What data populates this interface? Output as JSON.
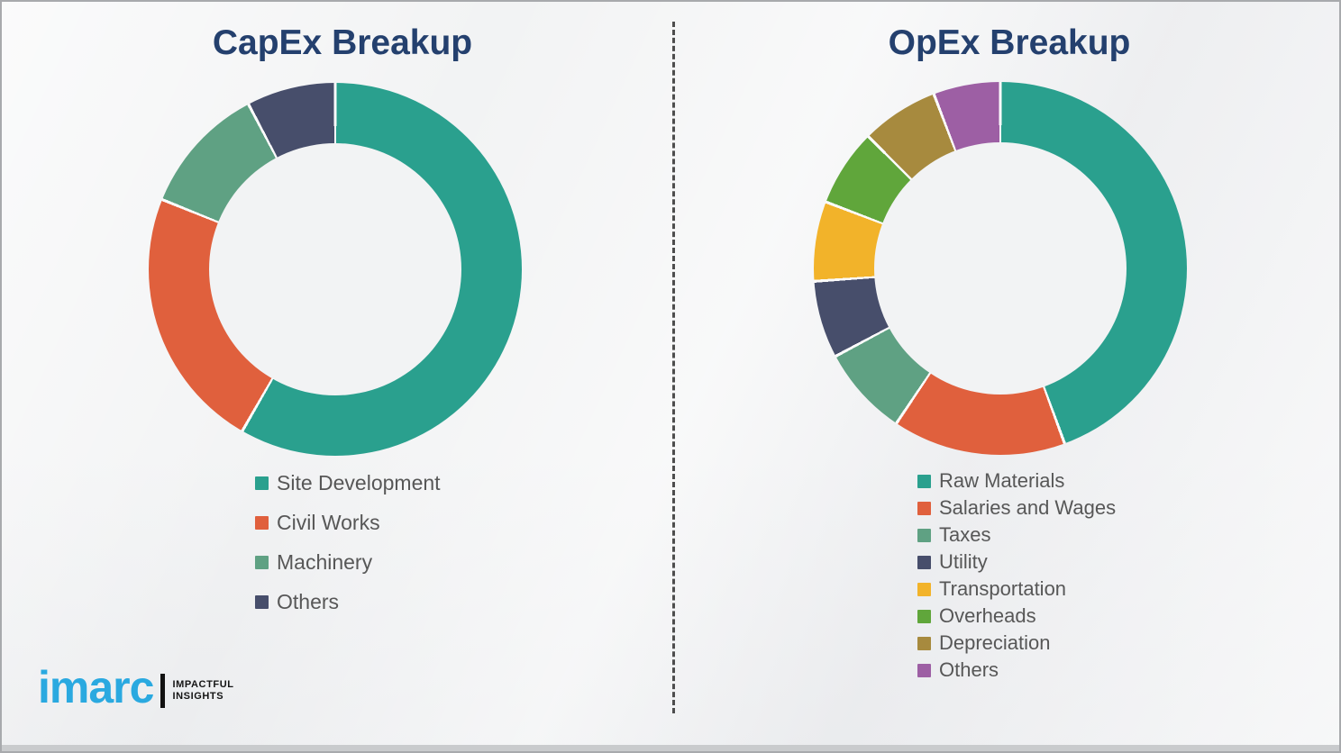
{
  "page": {
    "background": "#f2f3f4",
    "divider_color": "#4d4d4d",
    "title_color": "#24406e",
    "legend_text_color": "#575757"
  },
  "capex": {
    "title": "CapEx Breakup"
  },
  "opex": {
    "title": "OpEx Breakup"
  },
  "logo": {
    "brand": "imarc",
    "tagline_line1": "IMPACTFUL",
    "tagline_line2": "INSIGHTS",
    "brand_color": "#2aa9e0"
  },
  "chart_data": [
    {
      "type": "pie",
      "variant": "donut",
      "title": "CapEx Breakup",
      "units": "% (estimated from arc angles, no labels shown)",
      "start_angle_deg": 0,
      "direction": "clockwise",
      "legend_position": "bottom-left",
      "categories": [
        "Site Development",
        "Civil Works",
        "Machinery",
        "Others"
      ],
      "values": [
        58.3,
        22.8,
        11.2,
        7.7
      ],
      "colors": [
        "#2aa08e",
        "#e0603d",
        "#5fa183",
        "#474e6b"
      ]
    },
    {
      "type": "pie",
      "variant": "donut",
      "title": "OpEx Breakup",
      "units": "% (estimated from arc angles, no labels shown)",
      "start_angle_deg": 0,
      "direction": "clockwise",
      "legend_position": "bottom-left",
      "categories": [
        "Raw Materials",
        "Salaries and Wages",
        "Taxes",
        "Utility",
        "Transportation",
        "Overheads",
        "Depreciation",
        "Others"
      ],
      "values": [
        44.4,
        15.0,
        7.8,
        6.7,
        6.9,
        6.7,
        6.7,
        5.8
      ],
      "colors": [
        "#2aa08e",
        "#e0603d",
        "#5fa183",
        "#474e6b",
        "#f2b32a",
        "#60a63b",
        "#a78a3e",
        "#9d5fa4"
      ]
    }
  ]
}
